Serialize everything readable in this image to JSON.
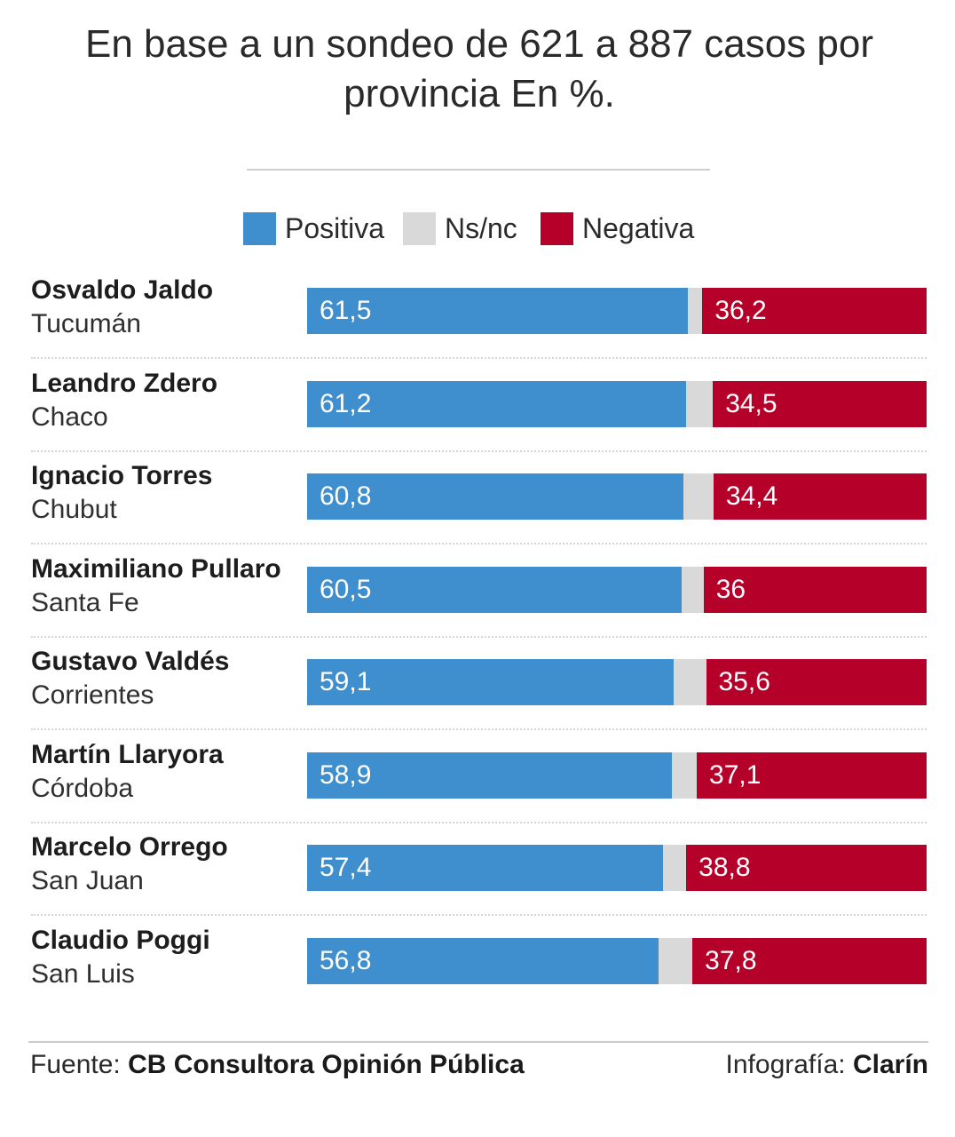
{
  "title": "En base a un sondeo de 621 a 887 casos por provincia En %.",
  "legend": {
    "positive": {
      "label": "Positiva",
      "color": "#3f8fcf"
    },
    "nsnc": {
      "label": "Ns/nc",
      "color": "#d9d9d9"
    },
    "negative": {
      "label": "Negativa",
      "color": "#b5002a"
    }
  },
  "chart_data": {
    "type": "bar",
    "stacked": true,
    "orientation": "horizontal",
    "title": "En base a un sondeo de 621 a 887 casos por provincia En %.",
    "xlabel": "",
    "ylabel": "",
    "xlim": [
      0,
      100
    ],
    "categories": [
      {
        "name": "Osvaldo Jaldo",
        "province": "Tucumán"
      },
      {
        "name": "Leandro Zdero",
        "province": "Chaco"
      },
      {
        "name": "Ignacio Torres",
        "province": "Chubut"
      },
      {
        "name": "Maximiliano Pullaro",
        "province": "Santa Fe"
      },
      {
        "name": "Gustavo Valdés",
        "province": "Corrientes"
      },
      {
        "name": "Martín Llaryora",
        "province": "Córdoba"
      },
      {
        "name": "Marcelo Orrego",
        "province": "San Juan"
      },
      {
        "name": "Claudio Poggi",
        "province": "San Luis"
      }
    ],
    "series": [
      {
        "name": "Positiva",
        "color": "#3f8fcf",
        "values": [
          61.5,
          61.2,
          60.8,
          60.5,
          59.1,
          58.9,
          57.4,
          56.8
        ],
        "labels": [
          "61,5",
          "61,2",
          "60,8",
          "60,5",
          "59,1",
          "58,9",
          "57,4",
          "56,8"
        ]
      },
      {
        "name": "Ns/nc",
        "color": "#d9d9d9",
        "values": [
          2.3,
          4.3,
          4.8,
          3.5,
          5.3,
          4.0,
          3.8,
          5.4
        ]
      },
      {
        "name": "Negativa",
        "color": "#b5002a",
        "values": [
          36.2,
          34.5,
          34.4,
          36.0,
          35.6,
          37.1,
          38.8,
          37.8
        ],
        "labels": [
          "36,2",
          "34,5",
          "34,4",
          "36",
          "35,6",
          "37,1",
          "38,8",
          "37,8"
        ]
      }
    ]
  },
  "footer": {
    "source_prefix": "Fuente: ",
    "source": "CB Consultora Opinión Pública",
    "credit_prefix": "Infografía: ",
    "credit": "Clarín"
  }
}
